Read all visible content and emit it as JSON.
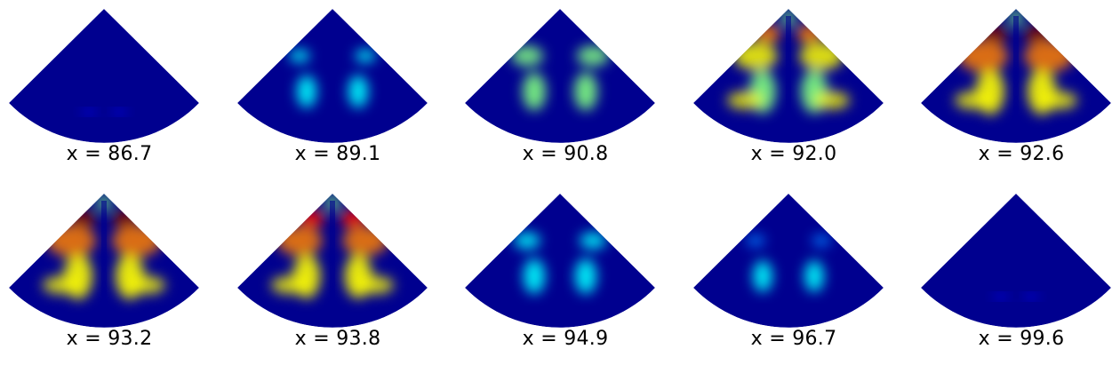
{
  "figure": {
    "panels": [
      {
        "caption": "x = 86.7",
        "intensity": 0.05
      },
      {
        "caption": "x = 89.1",
        "intensity": 0.25
      },
      {
        "caption": "x = 90.8",
        "intensity": 0.55
      },
      {
        "caption": "x = 92.0",
        "intensity": 0.85
      },
      {
        "caption": "x = 92.6",
        "intensity": 1.0
      },
      {
        "caption": "x = 93.2",
        "intensity": 1.0
      },
      {
        "caption": "x = 93.8",
        "intensity": 0.9
      },
      {
        "caption": "x = 94.9",
        "intensity": 0.4
      },
      {
        "caption": "x = 96.7",
        "intensity": 0.2
      },
      {
        "caption": "x = 99.6",
        "intensity": 0.05
      }
    ],
    "colormap": [
      "#00008f",
      "#0000ff",
      "#0080ff",
      "#00ffff",
      "#80ff80",
      "#ffff00",
      "#ff8000",
      "#ff0000",
      "#800000"
    ]
  }
}
